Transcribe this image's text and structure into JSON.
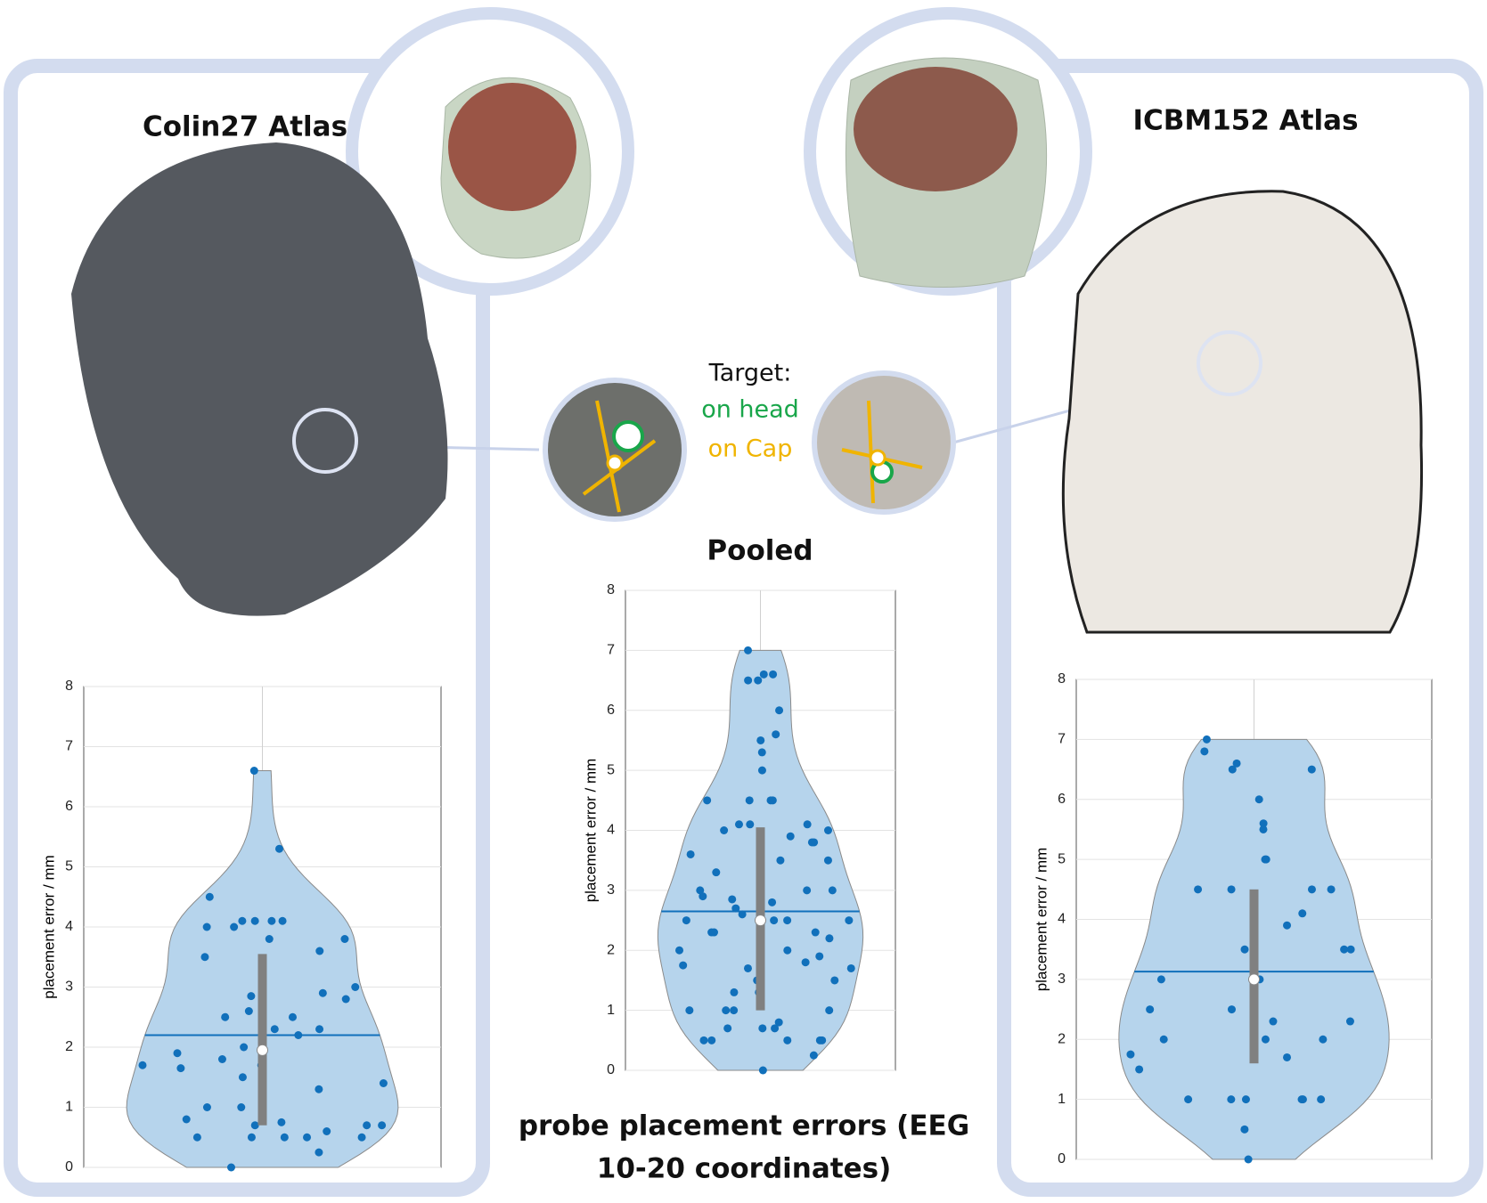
{
  "chart_data": [
    {
      "type": "violin",
      "title": "Colin27 Atlas",
      "ylabel": "placement error / mm",
      "values": [
        6.6,
        5.3,
        4.5,
        4.1,
        4.1,
        4.1,
        4.1,
        4.0,
        4.0,
        3.8,
        3.8,
        3.6,
        3.5,
        3.0,
        2.9,
        2.85,
        2.8,
        2.6,
        2.5,
        2.5,
        2.3,
        2.3,
        2.2,
        2.0,
        1.9,
        1.8,
        1.7,
        1.7,
        1.65,
        1.5,
        1.4,
        1.3,
        1.0,
        1.0,
        0.8,
        0.75,
        0.7,
        0.7,
        0.7,
        0.6,
        0.5,
        0.5,
        0.5,
        0.5,
        0.5,
        0.25,
        0.0
      ],
      "mean": 2.2,
      "median": 1.95,
      "q1": 0.7,
      "q3": 3.55,
      "color": "#1170bb",
      "ylim": [
        0,
        8
      ],
      "yticks": [
        0,
        1,
        2,
        3,
        4,
        5,
        6,
        7,
        8
      ],
      "grid": true
    },
    {
      "type": "violin",
      "title": "Pooled",
      "ylabel": "placement error / mm",
      "values": [
        7.0,
        6.6,
        6.6,
        6.5,
        6.5,
        6.0,
        5.6,
        5.5,
        5.3,
        5.0,
        4.5,
        4.5,
        4.5,
        4.5,
        4.1,
        4.1,
        4.1,
        4.0,
        4.0,
        3.9,
        3.8,
        3.8,
        3.6,
        3.5,
        3.5,
        3.3,
        3.0,
        3.0,
        3.0,
        2.9,
        2.85,
        2.8,
        2.7,
        2.6,
        2.5,
        2.5,
        2.5,
        2.5,
        2.3,
        2.3,
        2.3,
        2.2,
        2.0,
        2.0,
        2.0,
        1.9,
        1.8,
        1.75,
        1.7,
        1.7,
        1.5,
        1.5,
        1.3,
        1.3,
        1.0,
        1.0,
        1.0,
        1.0,
        0.8,
        0.7,
        0.7,
        0.7,
        0.5,
        0.5,
        0.5,
        0.5,
        0.5,
        0.25,
        0.0
      ],
      "mean": 2.65,
      "median": 2.5,
      "q1": 1.0,
      "q3": 4.05,
      "color": "#1170bb",
      "ylim": [
        0,
        8
      ],
      "yticks": [
        0,
        1,
        2,
        3,
        4,
        5,
        6,
        7,
        8
      ],
      "grid": true
    },
    {
      "type": "violin",
      "title": "ICBM152 Atlas",
      "ylabel": "placement error / mm",
      "values": [
        7.0,
        6.8,
        6.6,
        6.5,
        6.5,
        6.0,
        5.6,
        5.5,
        5.0,
        5.0,
        4.5,
        4.5,
        4.5,
        4.5,
        4.1,
        3.9,
        3.5,
        3.5,
        3.5,
        3.0,
        3.0,
        3.0,
        3.0,
        2.5,
        2.5,
        2.3,
        2.3,
        2.0,
        2.0,
        2.0,
        1.75,
        1.7,
        1.5,
        1.0,
        1.0,
        1.0,
        1.0,
        1.0,
        1.0,
        0.5,
        0.0
      ],
      "mean": 3.13,
      "median": 3.0,
      "q1": 1.6,
      "q3": 4.5,
      "color": "#1170bb",
      "ylim": [
        0,
        8
      ],
      "yticks": [
        0,
        1,
        2,
        3,
        4,
        5,
        6,
        7,
        8
      ],
      "grid": true
    }
  ],
  "annotations": {
    "target": "Target:",
    "on_head": "on head",
    "on_cap": "on Cap",
    "caption_line1": "probe placement errors (EEG",
    "caption_line2": "10-20 coordinates)"
  }
}
